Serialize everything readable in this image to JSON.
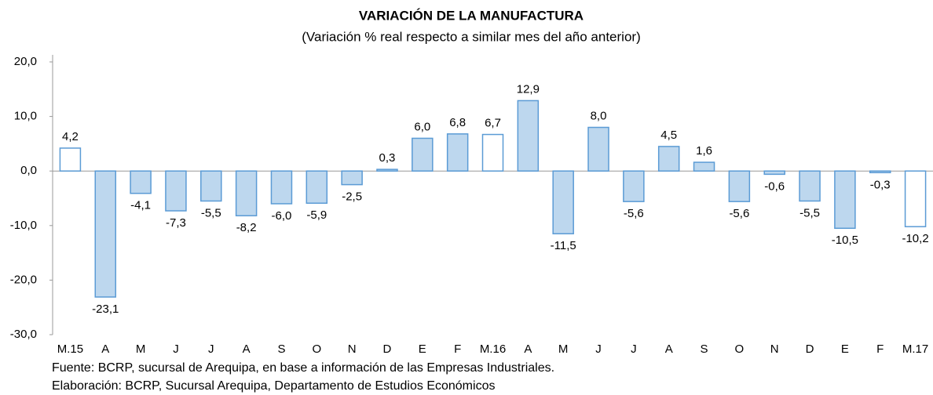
{
  "chart_data": {
    "type": "bar",
    "title": "VARIACIÓN DE LA MANUFACTURA",
    "subtitle": "(Variación % real respecto a similar mes del año anterior)",
    "categories": [
      "M.15",
      "A",
      "M",
      "J",
      "J",
      "A",
      "S",
      "O",
      "N",
      "D",
      "E",
      "F",
      "M.16",
      "A",
      "M",
      "J",
      "J",
      "A",
      "S",
      "O",
      "N",
      "D",
      "E",
      "F",
      "M.17"
    ],
    "values": [
      4.2,
      -23.1,
      -4.1,
      -7.3,
      -5.5,
      -8.2,
      -6.0,
      -5.9,
      -2.5,
      0.3,
      6.0,
      6.8,
      6.7,
      12.9,
      -11.5,
      8.0,
      -5.6,
      4.5,
      1.6,
      -5.6,
      -0.6,
      -5.5,
      -10.5,
      -0.3,
      -10.2
    ],
    "value_labels": [
      "4,2",
      "-23,1",
      "-4,1",
      "-7,3",
      "-5,5",
      "-8,2",
      "-6,0",
      "-5,9",
      "-2,5",
      "0,3",
      "6,0",
      "6,8",
      "6,7",
      "12,9",
      "-11,5",
      "8,0",
      "-5,6",
      "4,5",
      "1,6",
      "-5,6",
      "-0,6",
      "-5,5",
      "-10,5",
      "-0,3",
      "-10,2"
    ],
    "colors": [
      "#ffffff",
      "#bdd7ee",
      "#bdd7ee",
      "#bdd7ee",
      "#bdd7ee",
      "#bdd7ee",
      "#bdd7ee",
      "#bdd7ee",
      "#bdd7ee",
      "#bdd7ee",
      "#bdd7ee",
      "#bdd7ee",
      "#ffffff",
      "#bdd7ee",
      "#bdd7ee",
      "#bdd7ee",
      "#bdd7ee",
      "#bdd7ee",
      "#bdd7ee",
      "#bdd7ee",
      "#bdd7ee",
      "#bdd7ee",
      "#bdd7ee",
      "#bdd7ee",
      "#ffffff"
    ],
    "edge_color": "#5b9bd5",
    "ylim": [
      -30,
      20
    ],
    "yticks": [
      {
        "value": -30,
        "label": "-30,0"
      },
      {
        "value": -20,
        "label": "-20,0"
      },
      {
        "value": -10,
        "label": "-10,0"
      },
      {
        "value": 0,
        "label": "0,0"
      },
      {
        "value": 10,
        "label": "10,0"
      },
      {
        "value": 20,
        "label": "20,0"
      }
    ],
    "grid": false,
    "notes": [
      "Fuente: BCRP, sucursal de Arequipa, en base a información de las Empresas Industriales.",
      "Elaboración: BCRP, Sucursal Arequipa, Departamento de Estudios Económicos"
    ]
  }
}
